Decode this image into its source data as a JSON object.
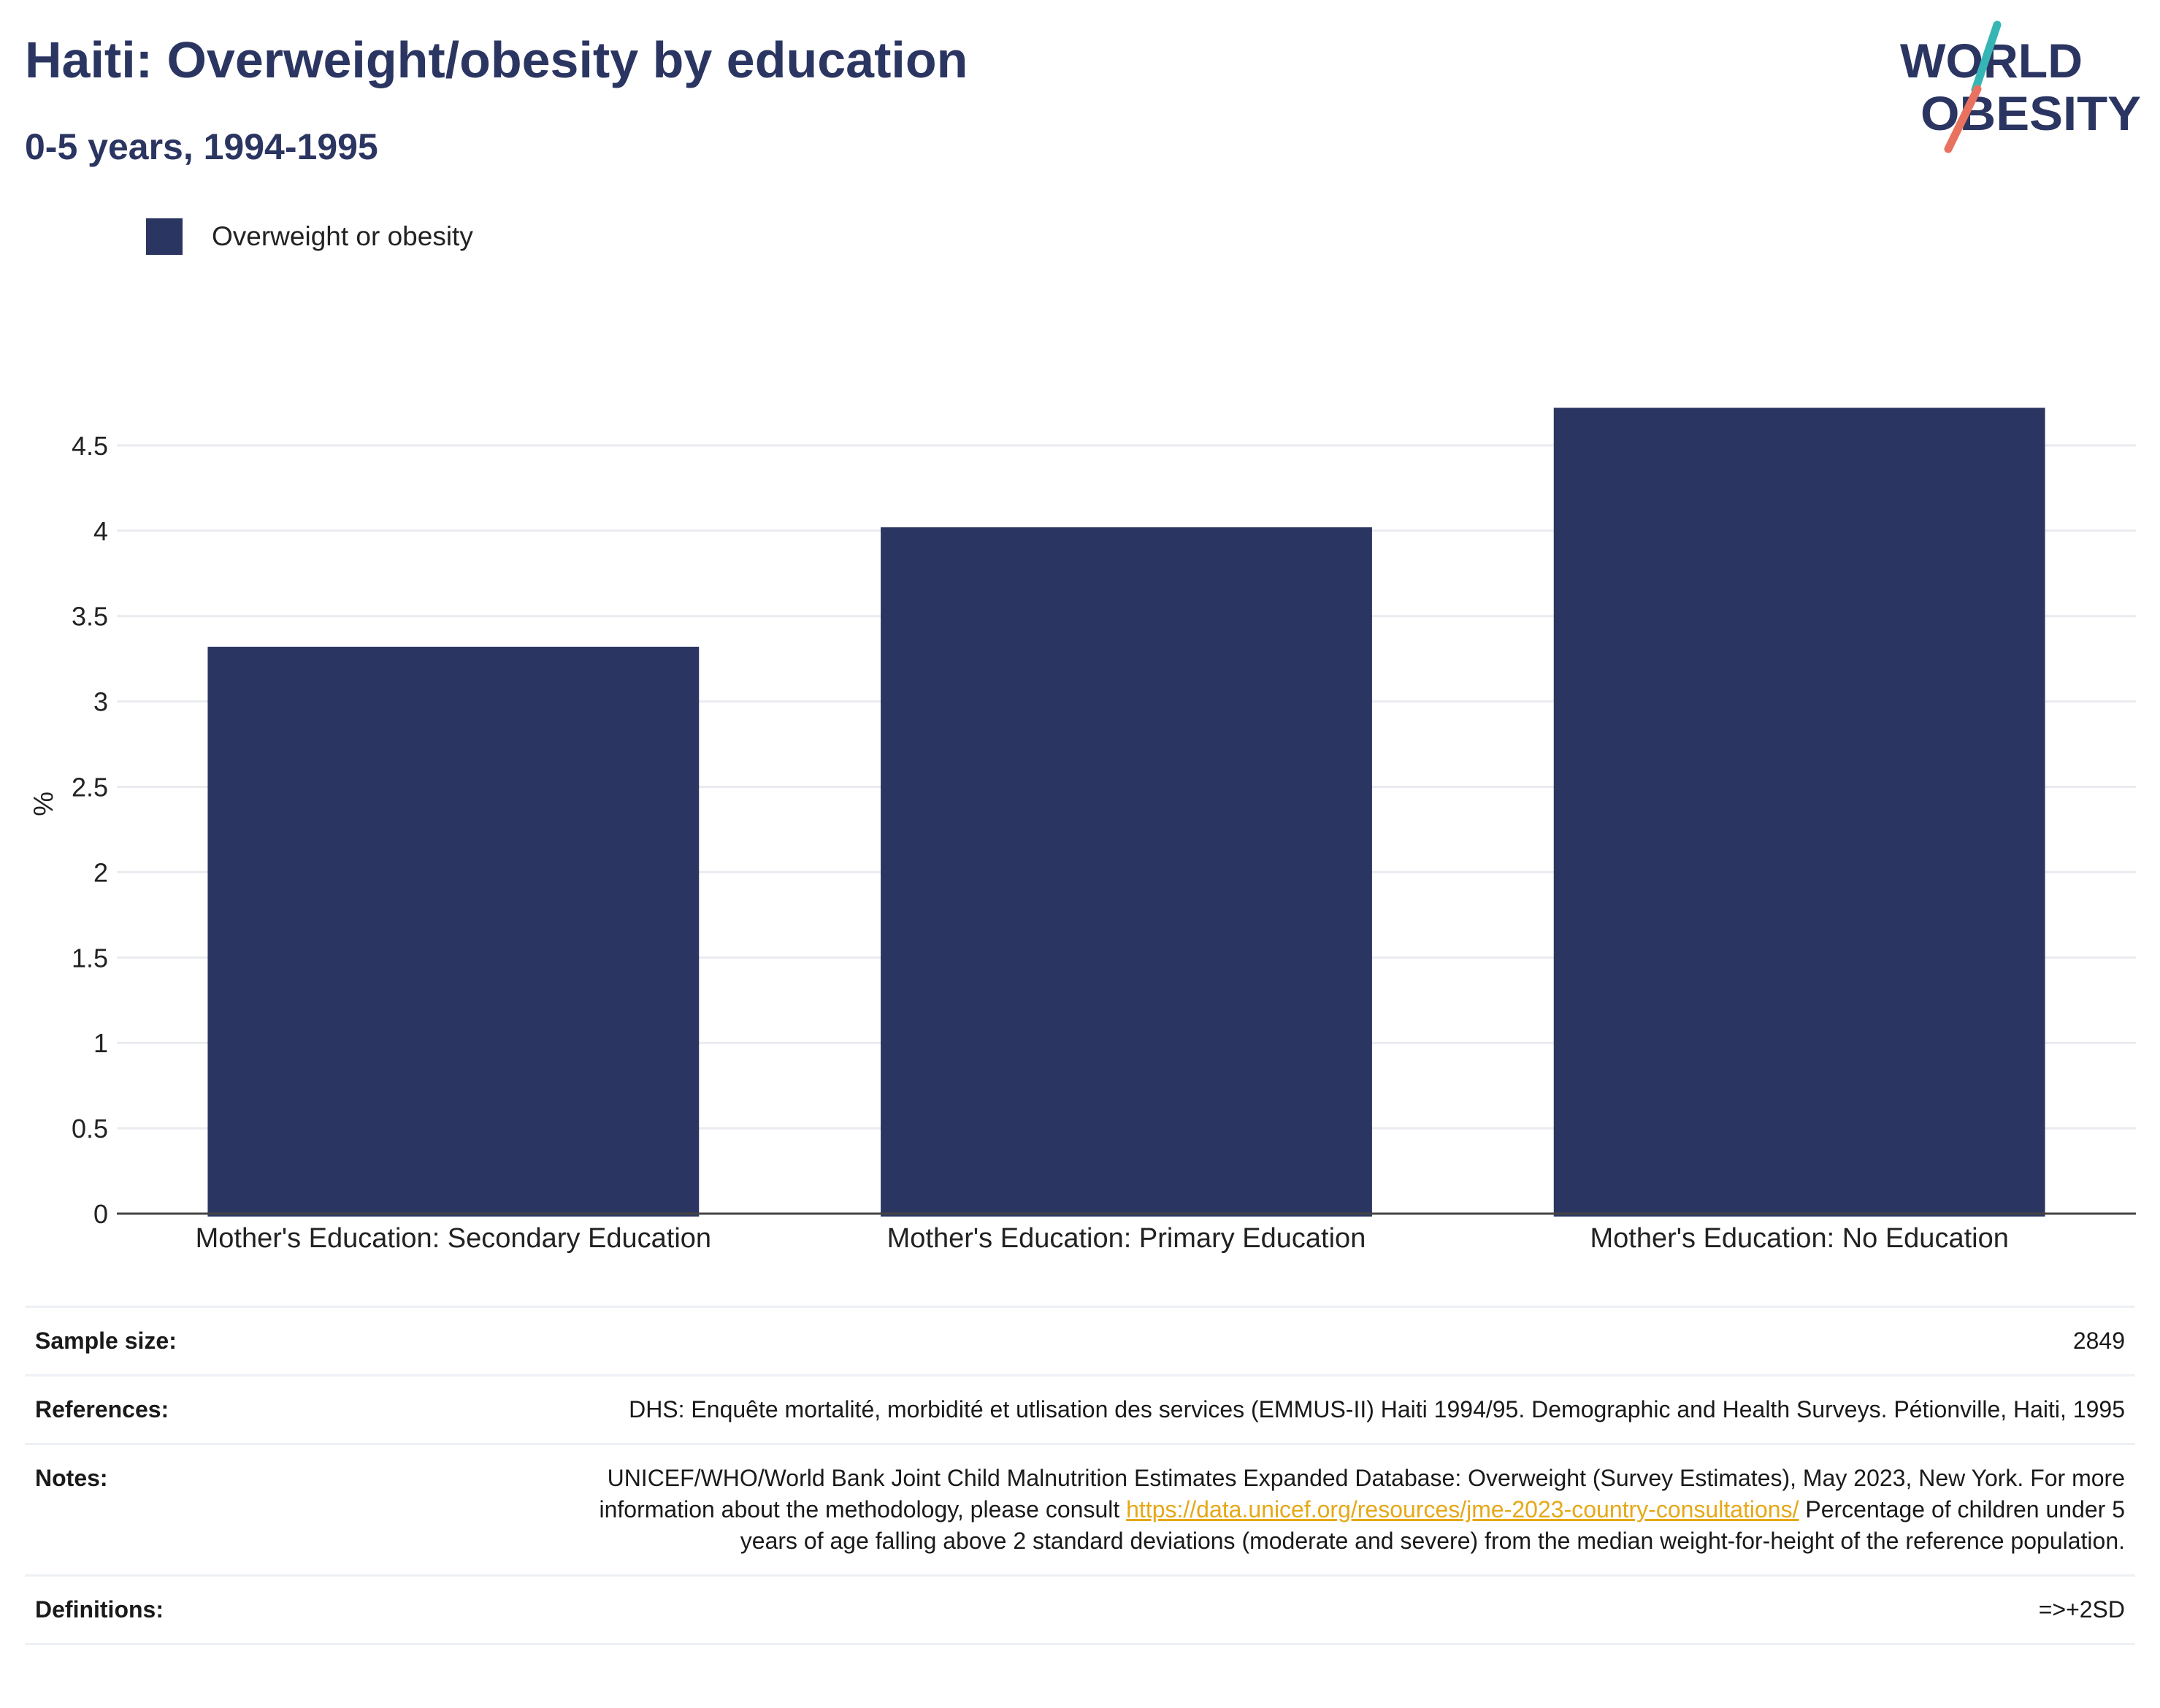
{
  "header": {
    "title": "Haiti: Overweight/obesity by education",
    "subtitle": "0-5 years, 1994-1995"
  },
  "logo": {
    "line1": "WORLD",
    "line2": "OBESITY",
    "colors": {
      "text": "#2b3561",
      "slash_teal": "#35b6b4",
      "slash_coral": "#e8715f"
    }
  },
  "legend": {
    "label": "Overweight or obesity",
    "color": "#2b3561"
  },
  "chart_data": {
    "type": "bar",
    "categories": [
      "Mother's Education: Secondary Education",
      "Mother's Education: Primary Education",
      "Mother's Education: No Education"
    ],
    "series": [
      {
        "name": "Overweight or obesity",
        "values": [
          3.32,
          4.02,
          4.72
        ],
        "color": "#2b3561"
      }
    ],
    "ylabel": "%",
    "ylim": [
      0,
      4.5
    ],
    "yticks": [
      0,
      0.5,
      1,
      1.5,
      2,
      2.5,
      3,
      3.5,
      4,
      4.5
    ],
    "ytick_labels": [
      "0",
      "0.5",
      "1",
      "1.5",
      "2",
      "2.5",
      "3",
      "3.5",
      "4",
      "4.5"
    ],
    "grid": true,
    "legend_position": "top-left"
  },
  "info": {
    "sample_size": {
      "label": "Sample size:",
      "value": "2849"
    },
    "references": {
      "label": "References:",
      "value": "DHS: Enquête mortalité, morbidité et utlisation des services (EMMUS-II) Haiti 1994/95. Demographic and Health Surveys. Pétionville, Haiti, 1995"
    },
    "notes": {
      "label": "Notes:",
      "text_before": "UNICEF/WHO/World Bank Joint Child Malnutrition Estimates Expanded Database: Overweight (Survey Estimates), May 2023, New York. For more information about the methodology, please consult ",
      "link": "https://data.unicef.org/resources/jme-2023-country-consultations/",
      "text_after": " Percentage of children under 5 years of age falling above 2 standard deviations (moderate and severe) from the median weight-for-height of the reference population."
    },
    "definitions": {
      "label": "Definitions:",
      "value": "=>+2SD"
    }
  }
}
